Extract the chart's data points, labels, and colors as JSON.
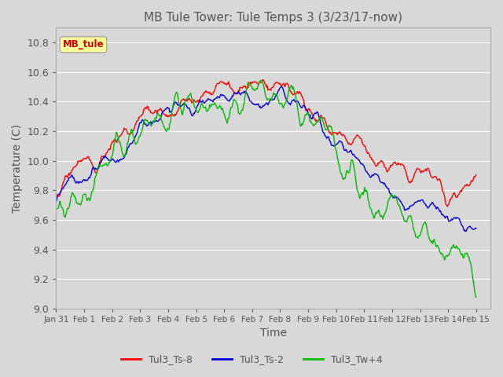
{
  "title": "MB Tule Tower: Tule Temps 3 (3/23/17-now)",
  "xlabel": "Time",
  "ylabel": "Temperature (C)",
  "ylim": [
    9.0,
    10.9
  ],
  "yticks": [
    9.0,
    9.2,
    9.4,
    9.6,
    9.8,
    10.0,
    10.2,
    10.4,
    10.6,
    10.8
  ],
  "xlim_days": [
    0,
    15.5
  ],
  "xtick_labels": [
    "Jan 31",
    "Feb 1",
    "Feb 2",
    "Feb 3",
    "Feb 4",
    "Feb 5",
    "Feb 6",
    "Feb 7",
    "Feb 8",
    "Feb 9",
    "Feb 10",
    "Feb 11",
    "Feb 12",
    "Feb 13",
    "Feb 14",
    "Feb 15"
  ],
  "xtick_positions": [
    0,
    1,
    2,
    3,
    4,
    5,
    6,
    7,
    8,
    9,
    10,
    11,
    12,
    13,
    14,
    15
  ],
  "line_colors": [
    "#ff0000",
    "#0000dd",
    "#00bb00"
  ],
  "line_labels": [
    "Tul3_Ts-8",
    "Tul3_Ts-2",
    "Tul3_Tw+4"
  ],
  "legend_box_color": "#ffff99",
  "legend_box_label": "MB_tule",
  "legend_box_text_color": "#cc0000",
  "bg_color": "#d8d8d8",
  "plot_bg_color": "#d8d8d8",
  "grid_color": "#bbbbbb",
  "title_color": "#555555",
  "axis_color": "#555555",
  "line_width": 1.0
}
